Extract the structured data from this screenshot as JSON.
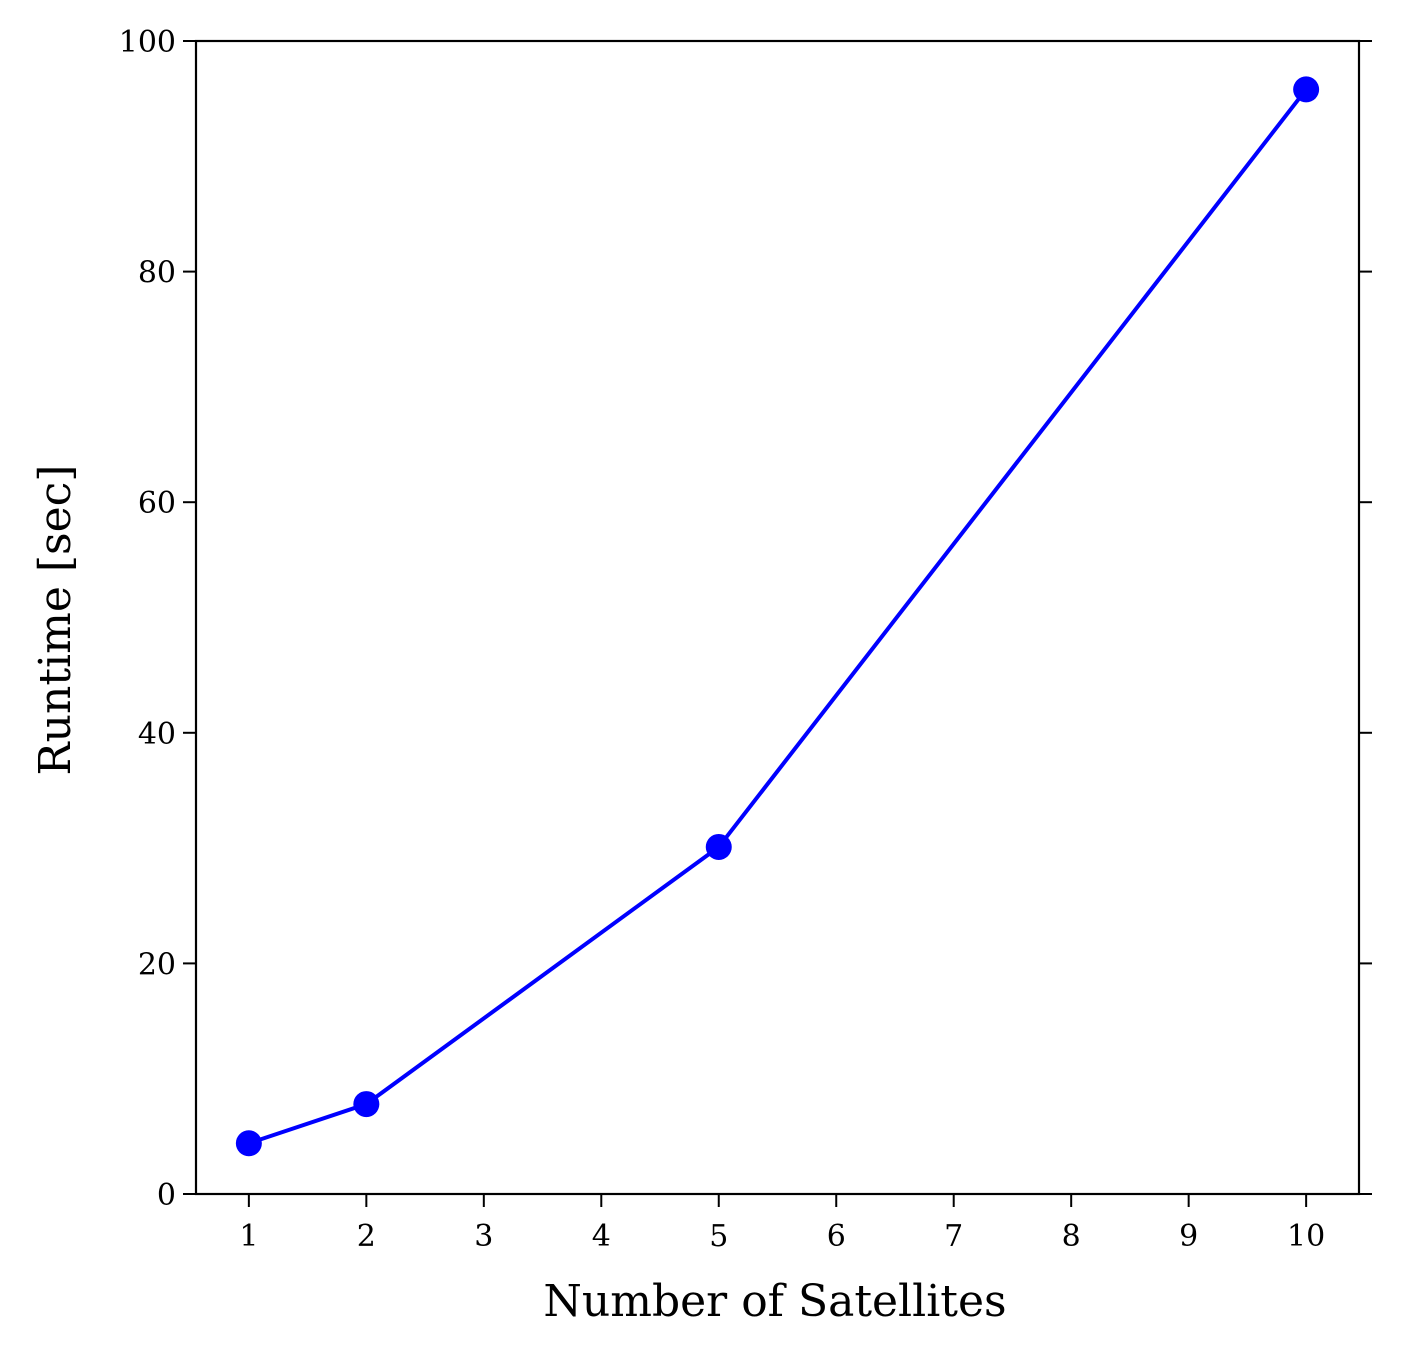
{
  "chart_data": {
    "type": "line",
    "title": "",
    "xlabel": "Number of Satellites",
    "ylabel": "Runtime [sec]",
    "x": [
      1,
      2,
      5,
      10
    ],
    "series": [
      {
        "values": [
          4.4,
          7.8,
          30.1,
          95.8
        ],
        "color": "#0000ff",
        "marker": "circle"
      }
    ],
    "xlim": [
      0.55,
      10.45
    ],
    "ylim": [
      0,
      100
    ],
    "xticks": [
      1,
      2,
      3,
      4,
      5,
      6,
      7,
      8,
      9,
      10
    ],
    "yticks": [
      0,
      20,
      40,
      60,
      80,
      100
    ],
    "xtick_labels": [
      "1",
      "2",
      "3",
      "4",
      "5",
      "6",
      "7",
      "8",
      "9",
      "10"
    ],
    "ytick_labels": [
      "0",
      "20",
      "40",
      "60",
      "80",
      "100"
    ],
    "grid": false,
    "legend": "none"
  }
}
